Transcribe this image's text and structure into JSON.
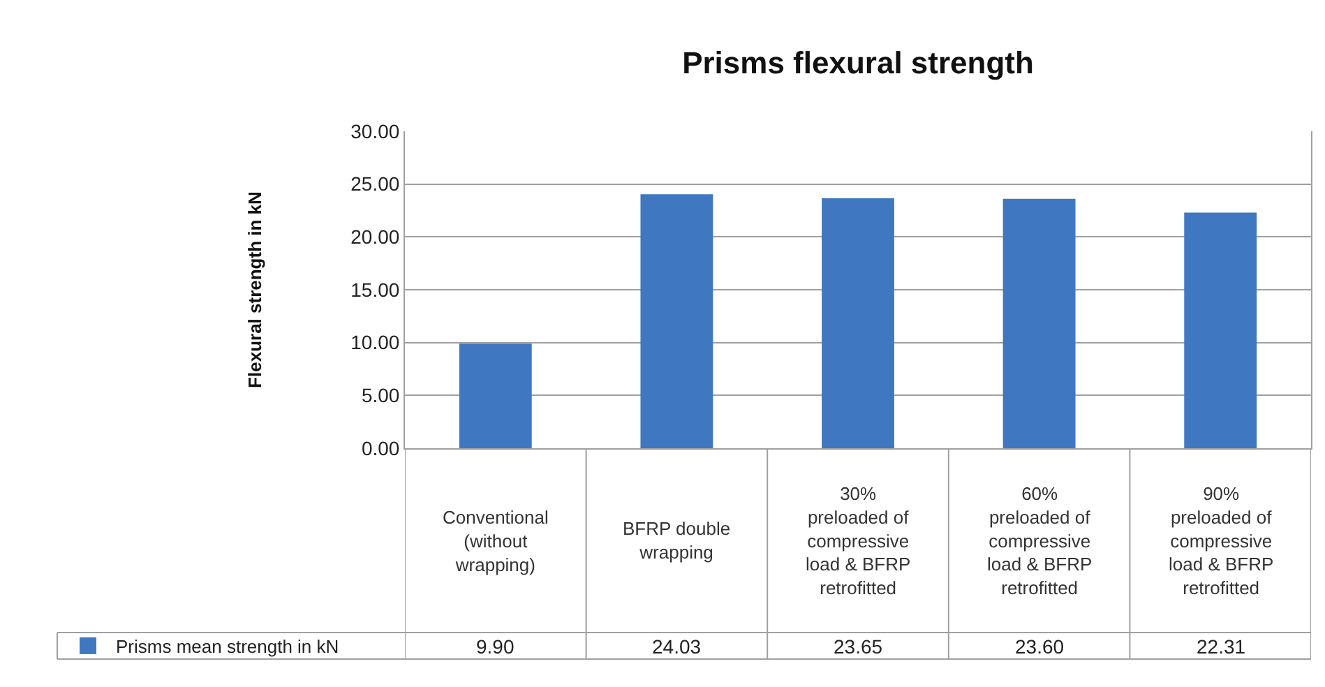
{
  "chart_data": {
    "type": "bar",
    "title": "Prisms flexural strength",
    "ylabel": "Flexural strength in kN",
    "categories": [
      "Conventional (without wrapping)",
      "BFRP double wrapping",
      "30% preloaded of compressive load & BFRP retrofitted",
      "60% preloaded of compressive load & BFRP retrofitted",
      "90% preloaded of compressive load & BFRP retrofitted"
    ],
    "series": [
      {
        "name": "Prisms mean strength in kN",
        "color": "#3f78c0",
        "values": [
          9.9,
          24.03,
          23.65,
          23.6,
          22.31
        ]
      }
    ],
    "value_labels": [
      "9.90",
      "24.03",
      "23.65",
      "23.60",
      "22.31"
    ],
    "ylim": [
      0,
      30
    ],
    "yticks": [
      {
        "value": 0,
        "label": "0.00"
      },
      {
        "value": 5,
        "label": "5.00"
      },
      {
        "value": 10,
        "label": "10.00"
      },
      {
        "value": 15,
        "label": "15.00"
      },
      {
        "value": 20,
        "label": "20.00"
      },
      {
        "value": 25,
        "label": "25.00"
      },
      {
        "value": 30,
        "label": "30.00"
      }
    ],
    "grid": "y",
    "legend": "bottom"
  }
}
